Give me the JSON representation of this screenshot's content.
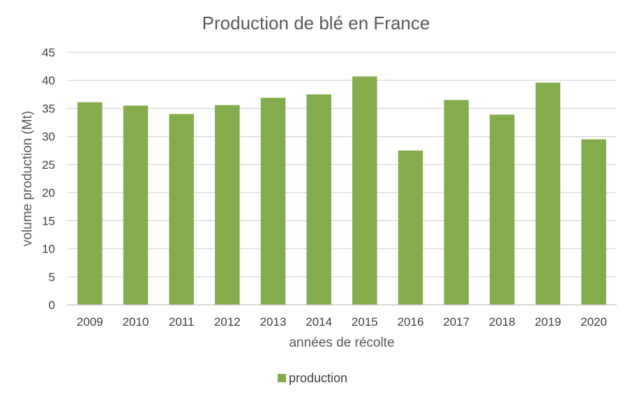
{
  "chart_data": {
    "type": "bar",
    "title": "Production de blé en France",
    "xlabel": "années de récolte",
    "ylabel": "volume production (Mt)",
    "ylim": [
      0,
      45
    ],
    "yticks": [
      0,
      5,
      10,
      15,
      20,
      25,
      30,
      35,
      40,
      45
    ],
    "grid": true,
    "legend_position": "bottom",
    "categories": [
      "2009",
      "2010",
      "2011",
      "2012",
      "2013",
      "2014",
      "2015",
      "2016",
      "2017",
      "2018",
      "2019",
      "2020"
    ],
    "series": [
      {
        "name": "production",
        "color": "#84ac4c",
        "values": [
          36.1,
          35.5,
          34.0,
          35.6,
          36.9,
          37.5,
          40.7,
          27.5,
          36.5,
          33.9,
          39.6,
          29.5
        ]
      }
    ]
  },
  "colors": {
    "grid": "#d9d9d9",
    "axis": "#bfbfbf"
  }
}
